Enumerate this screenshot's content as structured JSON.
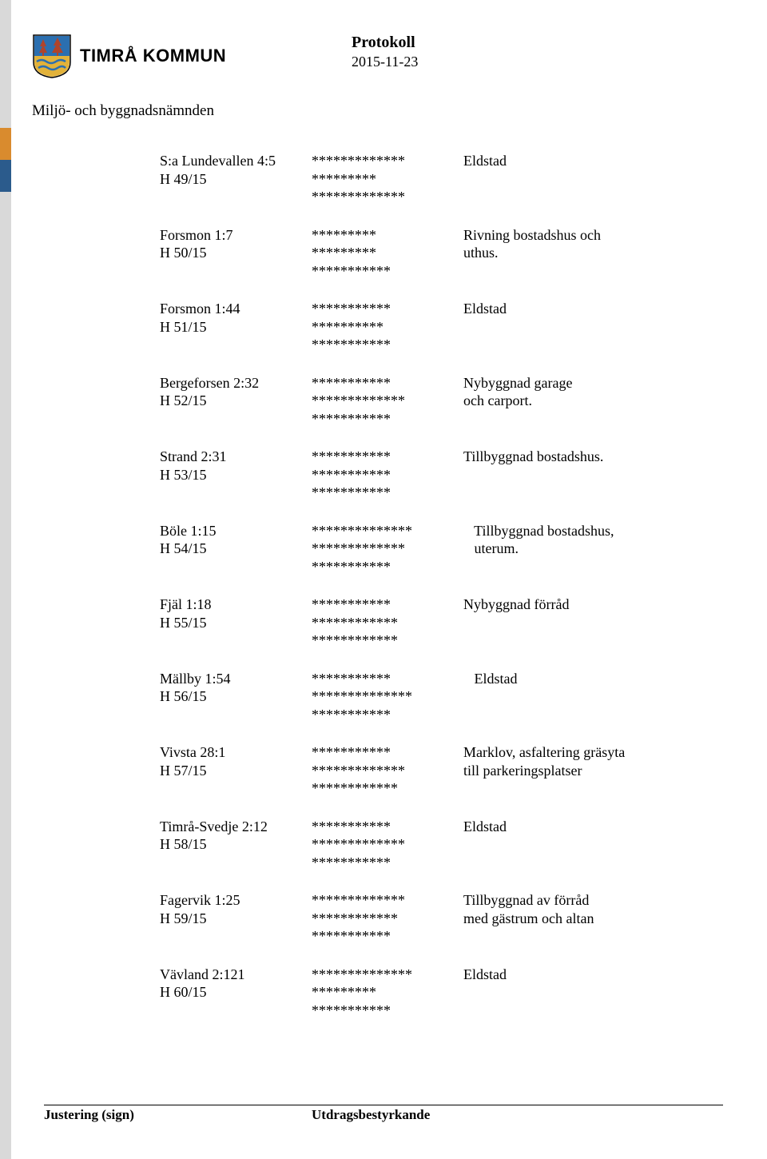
{
  "colors": {
    "stripe_top": "#d9d9d9",
    "stripe_orange": "#d98b2e",
    "stripe_blue": "#2b5b8c",
    "stripe_rest": "#d9d9d9",
    "logo_shield_top": "#2b6fb0",
    "logo_shield_bottom": "#e2b23a",
    "logo_trees": "#b0442a",
    "logo_waves": "#2b6fb0"
  },
  "header": {
    "org_name": "TIMRÅ KOMMUN",
    "doc_title": "Protokoll",
    "doc_date": "2015-11-23",
    "committee": "Miljö- och byggnadsnämnden"
  },
  "entries": [
    {
      "left": [
        "S:a Lundevallen 4:5",
        "H 49/15"
      ],
      "mid": [
        "*************",
        "*********",
        "*************"
      ],
      "right": [
        "Eldstad"
      ]
    },
    {
      "left": [
        "Forsmon 1:7",
        "H 50/15"
      ],
      "mid": [
        "*********",
        "*********",
        "***********"
      ],
      "right": [
        "Rivning bostadshus och",
        "uthus."
      ]
    },
    {
      "left": [
        "Forsmon 1:44",
        "H 51/15"
      ],
      "mid": [
        "***********",
        "**********",
        "***********"
      ],
      "right": [
        "Eldstad"
      ]
    },
    {
      "left": [
        "Bergeforsen 2:32",
        "H 52/15"
      ],
      "mid": [
        "***********",
        "*************",
        "***********"
      ],
      "right": [
        "Nybyggnad garage",
        "och carport."
      ]
    },
    {
      "left": [
        "Strand 2:31",
        "H 53/15"
      ],
      "mid": [
        "***********",
        "***********",
        "***********"
      ],
      "right": [
        "Tillbyggnad bostadshus."
      ]
    },
    {
      "left": [
        "Böle 1:15",
        "H 54/15"
      ],
      "mid": [
        "**************",
        "*************",
        "***********"
      ],
      "right": [
        "   Tillbyggnad bostadshus,",
        "   uterum."
      ]
    },
    {
      "left": [
        "Fjäl 1:18",
        "H 55/15"
      ],
      "mid": [
        "***********",
        "************",
        "************"
      ],
      "right": [
        "Nybyggnad förråd"
      ]
    },
    {
      "left": [
        "Mällby 1:54",
        "H 56/15"
      ],
      "mid": [
        "***********",
        "**************",
        "***********"
      ],
      "right": [
        "   Eldstad"
      ]
    },
    {
      "left": [
        "Vivsta 28:1",
        "H 57/15"
      ],
      "mid": [
        "***********",
        "*************",
        "************"
      ],
      "right": [
        "Marklov, asfaltering gräsyta",
        "till parkeringsplatser"
      ]
    },
    {
      "left": [
        "Timrå-Svedje 2:12",
        "H 58/15"
      ],
      "mid": [
        "***********",
        "*************",
        "***********"
      ],
      "right": [
        "Eldstad"
      ]
    },
    {
      "left": [
        "Fagervik 1:25",
        "H 59/15"
      ],
      "mid": [
        "*************",
        "************",
        "***********"
      ],
      "right": [
        "Tillbyggnad av förråd",
        "med gästrum och altan"
      ]
    },
    {
      "left": [
        "Vävland 2:121",
        "H 60/15"
      ],
      "mid": [
        "**************",
        "*********",
        "***********"
      ],
      "right": [
        "Eldstad"
      ]
    }
  ],
  "footer": {
    "left": "Justering  (sign)",
    "right": "Utdragsbestyrkande"
  }
}
